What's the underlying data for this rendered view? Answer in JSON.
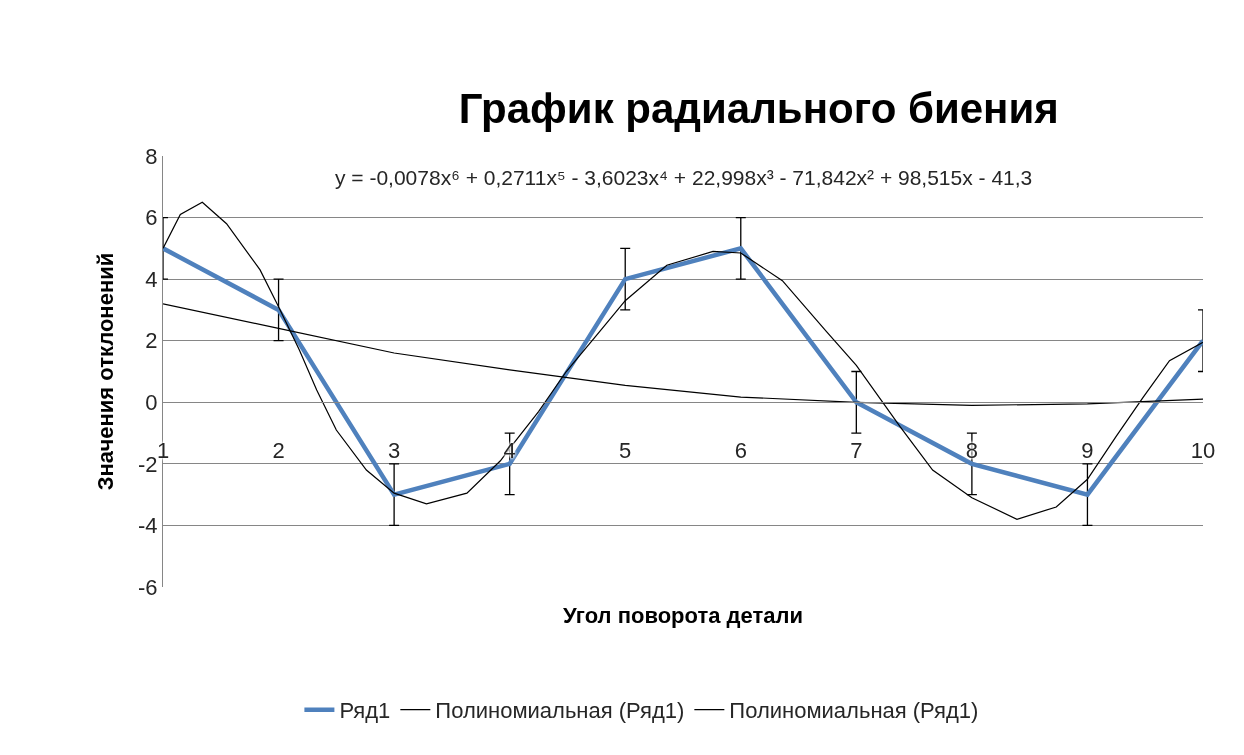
{
  "chart_data": {
    "type": "line",
    "title": "График радиального биения",
    "xlabel": "Угол поворота детали",
    "ylabel": "Значения отклонений",
    "x": [
      1,
      2,
      3,
      4,
      5,
      6,
      7,
      8,
      9,
      10
    ],
    "xlim": [
      1,
      10
    ],
    "xticks": [
      1,
      2,
      3,
      4,
      5,
      6,
      7,
      8,
      9,
      10
    ],
    "ylim": [
      -6,
      8
    ],
    "yticks": [
      -6,
      -4,
      -2,
      0,
      2,
      4,
      6,
      8
    ],
    "grid": "y",
    "legend": "bottom",
    "marker": "none",
    "line_style": "solid",
    "annotations": [
      "y = -0,0078x⁶ + 0,2711x⁵ - 3,6023x⁴ + 22,998x³ - 71,842x² + 98,515x - 41,3"
    ],
    "series": [
      {
        "name": "Ряд1",
        "color": "#4f81bd",
        "values": [
          5,
          3,
          -3,
          -2,
          4,
          5,
          0,
          -2,
          -3,
          2
        ],
        "errors": [
          1,
          1,
          1,
          1,
          1,
          1,
          1,
          1,
          1,
          1
        ]
      },
      {
        "name": "Полиномиальная (Ряд1)",
        "color": "#000000",
        "x": [
          1,
          1.15,
          1.34,
          1.55,
          1.84,
          2,
          2.18,
          2.33,
          2.5,
          2.76,
          3,
          3.28,
          3.63,
          3.92,
          4,
          4.25,
          4.49,
          4.78,
          5,
          5.36,
          5.76,
          6,
          6.36,
          6.74,
          7,
          7.38,
          7.66,
          8,
          8.39,
          8.73,
          9,
          9.25,
          9.48,
          9.71,
          10
        ],
        "values": [
          5,
          6.1,
          6.5,
          5.8,
          4.3,
          3.1,
          1.7,
          0.4,
          -0.9,
          -2.2,
          -2.95,
          -3.3,
          -2.95,
          -1.9,
          -1.5,
          -0.3,
          1,
          2.3,
          3.3,
          4.45,
          4.9,
          4.85,
          3.95,
          2.3,
          1.2,
          -0.8,
          -2.2,
          -3.1,
          -3.8,
          -3.4,
          -2.5,
          -1.1,
          0.15,
          1.35,
          1.95
        ]
      },
      {
        "name": "Полиномиальная (Ряд1)",
        "color": "#000000",
        "x": [
          1,
          2,
          3,
          4,
          5,
          6,
          7,
          8,
          9,
          10
        ],
        "values": [
          3.2,
          2.4,
          1.6,
          1.05,
          0.55,
          0.17,
          0,
          -0.1,
          -0.05,
          0.1
        ]
      }
    ]
  }
}
